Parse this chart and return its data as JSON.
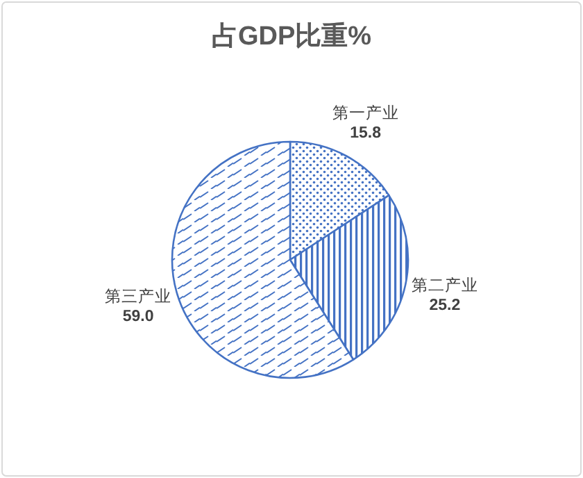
{
  "chart_data": {
    "type": "pie",
    "title": "占GDP比重%",
    "categories": [
      "第一产业",
      "第二产业",
      "第三产业"
    ],
    "values": [
      15.8,
      25.2,
      59.0
    ],
    "colors": [
      "#4472c4",
      "#4472c4",
      "#4472c4"
    ],
    "value_labels": [
      "15.8",
      "25.2",
      "59.0"
    ]
  }
}
